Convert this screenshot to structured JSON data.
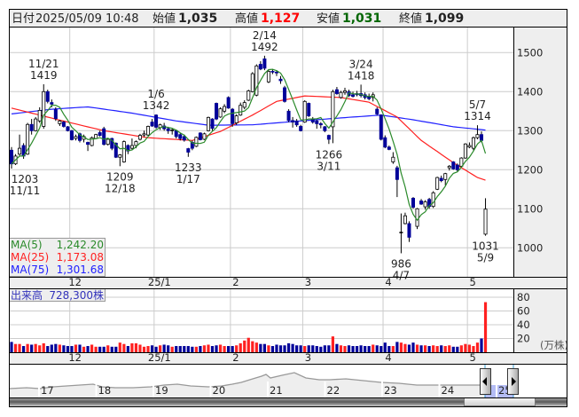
{
  "header": {
    "date_label": "日付",
    "datetime": "2025/05/09 10:48",
    "open_label": "始値",
    "open": "1,035",
    "high_label": "高値",
    "high": "1,127",
    "low_label": "安値",
    "low": "1,031",
    "close_label": "終値",
    "close": "1,099"
  },
  "colors": {
    "up_candle": "#ffffff",
    "down_candle": "#000099",
    "high_value": "#ff0000",
    "low_value": "#006600",
    "ma5": "#2a8a2a",
    "ma25": "#ff2020",
    "ma75": "#2020ff",
    "volume_up": "#ff2020",
    "volume_down": "#000099"
  },
  "legend": {
    "ma5_label": "MA(5)",
    "ma5_value": "1,242.20",
    "ma25_label": "MA(25)",
    "ma25_value": "1,173.08",
    "ma75_label": "MA(75)",
    "ma75_value": "1,301.68",
    "volume_label": "出来高",
    "volume_value": "728,300株"
  },
  "chart_data": [
    {
      "type": "candlestick",
      "period": "daily",
      "first_day": "11/11",
      "last_day": "5/9",
      "ylim": [
        950,
        1560
      ],
      "y_ticks": [
        "1500",
        "1400",
        "1300",
        "1200",
        "1100",
        "1000"
      ],
      "x_ticks": [
        {
          "label": "12",
          "day": 15
        },
        {
          "label": "25/1",
          "day": 36
        },
        {
          "label": "2",
          "day": 55
        },
        {
          "label": "3",
          "day": 73
        },
        {
          "label": "4",
          "day": 93
        },
        {
          "label": "5",
          "day": 114
        }
      ],
      "grid": true,
      "ohlc": [
        [
          1250,
          1258,
          1203,
          1215
        ],
        [
          1215,
          1240,
          1212,
          1235
        ],
        [
          1240,
          1290,
          1235,
          1255
        ],
        [
          1262,
          1268,
          1228,
          1235
        ],
        [
          1240,
          1320,
          1238,
          1316
        ],
        [
          1316,
          1330,
          1290,
          1300
        ],
        [
          1300,
          1335,
          1298,
          1330
        ],
        [
          1325,
          1360,
          1320,
          1352
        ],
        [
          1311,
          1419,
          1305,
          1400
        ],
        [
          1400,
          1405,
          1370,
          1375
        ],
        [
          1372,
          1380,
          1360,
          1368
        ],
        [
          1354,
          1360,
          1325,
          1331
        ],
        [
          1318,
          1328,
          1312,
          1325
        ],
        [
          1322,
          1325,
          1308,
          1311
        ],
        [
          1310,
          1312,
          1298,
          1300
        ],
        [
          1300,
          1302,
          1275,
          1277
        ],
        [
          1280,
          1290,
          1275,
          1285
        ],
        [
          1292,
          1295,
          1270,
          1275
        ],
        [
          1278,
          1290,
          1270,
          1285
        ],
        [
          1270,
          1272,
          1248,
          1265
        ],
        [
          1262,
          1285,
          1260,
          1282
        ],
        [
          1280,
          1292,
          1278,
          1290
        ],
        [
          1295,
          1300,
          1285,
          1288
        ],
        [
          1305,
          1310,
          1262,
          1265
        ],
        [
          1265,
          1280,
          1262,
          1278
        ],
        [
          1280,
          1282,
          1250,
          1255
        ],
        [
          1268,
          1270,
          1230,
          1232
        ],
        [
          1232,
          1240,
          1209,
          1238
        ],
        [
          1220,
          1275,
          1218,
          1272
        ],
        [
          1262,
          1265,
          1240,
          1248
        ],
        [
          1255,
          1280,
          1252,
          1262
        ],
        [
          1262,
          1275,
          1255,
          1272
        ],
        [
          1278,
          1292,
          1275,
          1288
        ],
        [
          1289,
          1300,
          1284,
          1292
        ],
        [
          1289,
          1313,
          1287,
          1311
        ],
        [
          1322,
          1330,
          1310,
          1312
        ],
        [
          1340,
          1342,
          1305,
          1309
        ],
        [
          1308,
          1318,
          1302,
          1315
        ],
        [
          1312,
          1320,
          1300,
          1305
        ],
        [
          1305,
          1310,
          1292,
          1300
        ],
        [
          1300,
          1306,
          1290,
          1302
        ],
        [
          1300,
          1303,
          1280,
          1285
        ],
        [
          1290,
          1295,
          1275,
          1280
        ],
        [
          1285,
          1290,
          1272,
          1276
        ],
        [
          1254,
          1256,
          1233,
          1245
        ],
        [
          1270,
          1275,
          1250,
          1255
        ],
        [
          1260,
          1285,
          1258,
          1283
        ],
        [
          1294,
          1296,
          1275,
          1277
        ],
        [
          1278,
          1295,
          1276,
          1292
        ],
        [
          1300,
          1336,
          1298,
          1334
        ],
        [
          1330,
          1332,
          1300,
          1306
        ],
        [
          1370,
          1372,
          1327,
          1330
        ],
        [
          1335,
          1360,
          1333,
          1356
        ],
        [
          1350,
          1368,
          1345,
          1362
        ],
        [
          1385,
          1388,
          1356,
          1358
        ],
        [
          1355,
          1358,
          1310,
          1318
        ],
        [
          1320,
          1342,
          1315,
          1338
        ],
        [
          1340,
          1372,
          1338,
          1365
        ],
        [
          1360,
          1378,
          1355,
          1372
        ],
        [
          1378,
          1405,
          1376,
          1402
        ],
        [
          1400,
          1450,
          1398,
          1446
        ],
        [
          1391,
          1470,
          1388,
          1466
        ],
        [
          1470,
          1478,
          1455,
          1458
        ],
        [
          1484,
          1492,
          1455,
          1460
        ],
        [
          1425,
          1455,
          1422,
          1452
        ],
        [
          1452,
          1458,
          1445,
          1450
        ],
        [
          1450,
          1455,
          1440,
          1448
        ],
        [
          1432,
          1440,
          1420,
          1428
        ],
        [
          1410,
          1415,
          1372,
          1375
        ],
        [
          1350,
          1355,
          1322,
          1326
        ],
        [
          1326,
          1335,
          1308,
          1322
        ],
        [
          1325,
          1330,
          1310,
          1315
        ],
        [
          1311,
          1315,
          1298,
          1300
        ],
        [
          1322,
          1378,
          1320,
          1375
        ],
        [
          1370,
          1372,
          1335,
          1338
        ],
        [
          1330,
          1335,
          1318,
          1322
        ],
        [
          1325,
          1328,
          1305,
          1318
        ],
        [
          1318,
          1322,
          1306,
          1315
        ],
        [
          1310,
          1312,
          1296,
          1300
        ],
        [
          1288,
          1290,
          1266,
          1278
        ],
        [
          1310,
          1405,
          1268,
          1400
        ],
        [
          1405,
          1412,
          1392,
          1395
        ],
        [
          1385,
          1402,
          1382,
          1398
        ],
        [
          1398,
          1410,
          1392,
          1402
        ],
        [
          1400,
          1405,
          1386,
          1390
        ],
        [
          1392,
          1400,
          1385,
          1388
        ],
        [
          1395,
          1402,
          1388,
          1392
        ],
        [
          1395,
          1418,
          1385,
          1390
        ],
        [
          1392,
          1398,
          1380,
          1385
        ],
        [
          1388,
          1395,
          1378,
          1382
        ],
        [
          1385,
          1398,
          1375,
          1392
        ],
        [
          1355,
          1360,
          1340,
          1343
        ],
        [
          1340,
          1342,
          1275,
          1278
        ],
        [
          1282,
          1288,
          1255,
          1258
        ],
        [
          1258,
          1262,
          1250,
          1252
        ],
        [
          1220,
          1245,
          1215,
          1232
        ],
        [
          1205,
          1210,
          1130,
          1175
        ],
        [
          1040,
          1088,
          986,
          1040
        ],
        [
          1062,
          1090,
          1060,
          1082
        ],
        [
          1062,
          1068,
          1015,
          1027
        ],
        [
          1127,
          1130,
          1100,
          1104
        ],
        [
          1055,
          1102,
          1048,
          1100
        ],
        [
          1120,
          1125,
          1110,
          1112
        ],
        [
          1105,
          1122,
          1098,
          1118
        ],
        [
          1124,
          1128,
          1100,
          1106
        ],
        [
          1106,
          1145,
          1102,
          1141
        ],
        [
          1150,
          1182,
          1148,
          1180
        ],
        [
          1178,
          1185,
          1168,
          1172
        ],
        [
          1175,
          1192,
          1160,
          1190
        ],
        [
          1205,
          1212,
          1198,
          1209
        ],
        [
          1220,
          1222,
          1200,
          1202
        ],
        [
          1212,
          1216,
          1196,
          1200
        ],
        [
          1209,
          1232,
          1205,
          1230
        ],
        [
          1230,
          1268,
          1228,
          1266
        ],
        [
          1258,
          1270,
          1255,
          1262
        ],
        [
          1255,
          1285,
          1250,
          1282
        ],
        [
          1282,
          1314,
          1278,
          1290
        ],
        [
          1290,
          1298,
          1270,
          1275
        ],
        [
          1035,
          1127,
          1031,
          1099
        ]
      ],
      "ma25": [
        [
          0,
          1358
        ],
        [
          12,
          1327
        ],
        [
          23,
          1300
        ],
        [
          34,
          1282
        ],
        [
          45,
          1275
        ],
        [
          52,
          1298
        ],
        [
          60,
          1340
        ],
        [
          66,
          1375
        ],
        [
          73,
          1389
        ],
        [
          82,
          1385
        ],
        [
          89,
          1373
        ],
        [
          96,
          1335
        ],
        [
          102,
          1275
        ],
        [
          110,
          1218
        ],
        [
          116,
          1180
        ],
        [
          118,
          1173.08
        ]
      ],
      "ma75": [
        [
          0,
          1343
        ],
        [
          10,
          1355
        ],
        [
          19,
          1361
        ],
        [
          30,
          1345
        ],
        [
          41,
          1325
        ],
        [
          49,
          1314
        ],
        [
          60,
          1315
        ],
        [
          72,
          1325
        ],
        [
          85,
          1335
        ],
        [
          92,
          1340
        ],
        [
          100,
          1328
        ],
        [
          110,
          1310
        ],
        [
          118,
          1301.68
        ]
      ],
      "annotations": [
        {
          "day": 8,
          "date": "11/21",
          "value": "1419",
          "kind": "high"
        },
        {
          "day": 36,
          "date": "1/6",
          "value": "1342",
          "kind": "high"
        },
        {
          "day": 63,
          "date": "2/14",
          "value": "1492",
          "kind": "high"
        },
        {
          "day": 87,
          "date": "3/24",
          "value": "1418",
          "kind": "high"
        },
        {
          "day": 116,
          "date": "5/7",
          "value": "1314",
          "kind": "high"
        },
        {
          "day": 0,
          "date": "11/11",
          "value": "1203",
          "kind": "low"
        },
        {
          "day": 27,
          "date": "12/18",
          "value": "1209",
          "kind": "low"
        },
        {
          "day": 44,
          "date": "1/17",
          "value": "1233",
          "kind": "low"
        },
        {
          "day": 79,
          "date": "3/11",
          "value": "1266",
          "kind": "low"
        },
        {
          "day": 97,
          "date": "4/7",
          "value": "986",
          "kind": "low"
        },
        {
          "day": 118,
          "date": "5/9",
          "value": "1031",
          "kind": "low"
        }
      ]
    },
    {
      "type": "bar",
      "unit": "(万株)",
      "ylim": [
        0,
        80
      ],
      "y_ticks": [
        "80",
        "60",
        "40",
        "20"
      ],
      "values": [
        15,
        12,
        12,
        9,
        12,
        11,
        12,
        10,
        13,
        9,
        11,
        12,
        11,
        10,
        9,
        9,
        11,
        11,
        8,
        9,
        11,
        8,
        8,
        8,
        10,
        8,
        8,
        14,
        12,
        9,
        13,
        13,
        11,
        8,
        9,
        10,
        8,
        10,
        11,
        10,
        8,
        9,
        9,
        9,
        9,
        8,
        8,
        9,
        10,
        11,
        9,
        10,
        11,
        9,
        9,
        9,
        10,
        13,
        17,
        21,
        16,
        14,
        12,
        12,
        10,
        9,
        11,
        10,
        10,
        13,
        12,
        10,
        10,
        9,
        10,
        10,
        9,
        8,
        10,
        10,
        23,
        12,
        10,
        9,
        10,
        9,
        9,
        10,
        9,
        9,
        11,
        10,
        9,
        14,
        9,
        9,
        15,
        14,
        12,
        11,
        14,
        11,
        10,
        10,
        9,
        10,
        9,
        10,
        9,
        10,
        8,
        8,
        10,
        12,
        11,
        9,
        14,
        20,
        72.83
      ]
    }
  ],
  "navigator": {
    "year_labels": [
      "17",
      "18",
      "19",
      "20",
      "21",
      "22",
      "23",
      "24",
      "25"
    ]
  }
}
